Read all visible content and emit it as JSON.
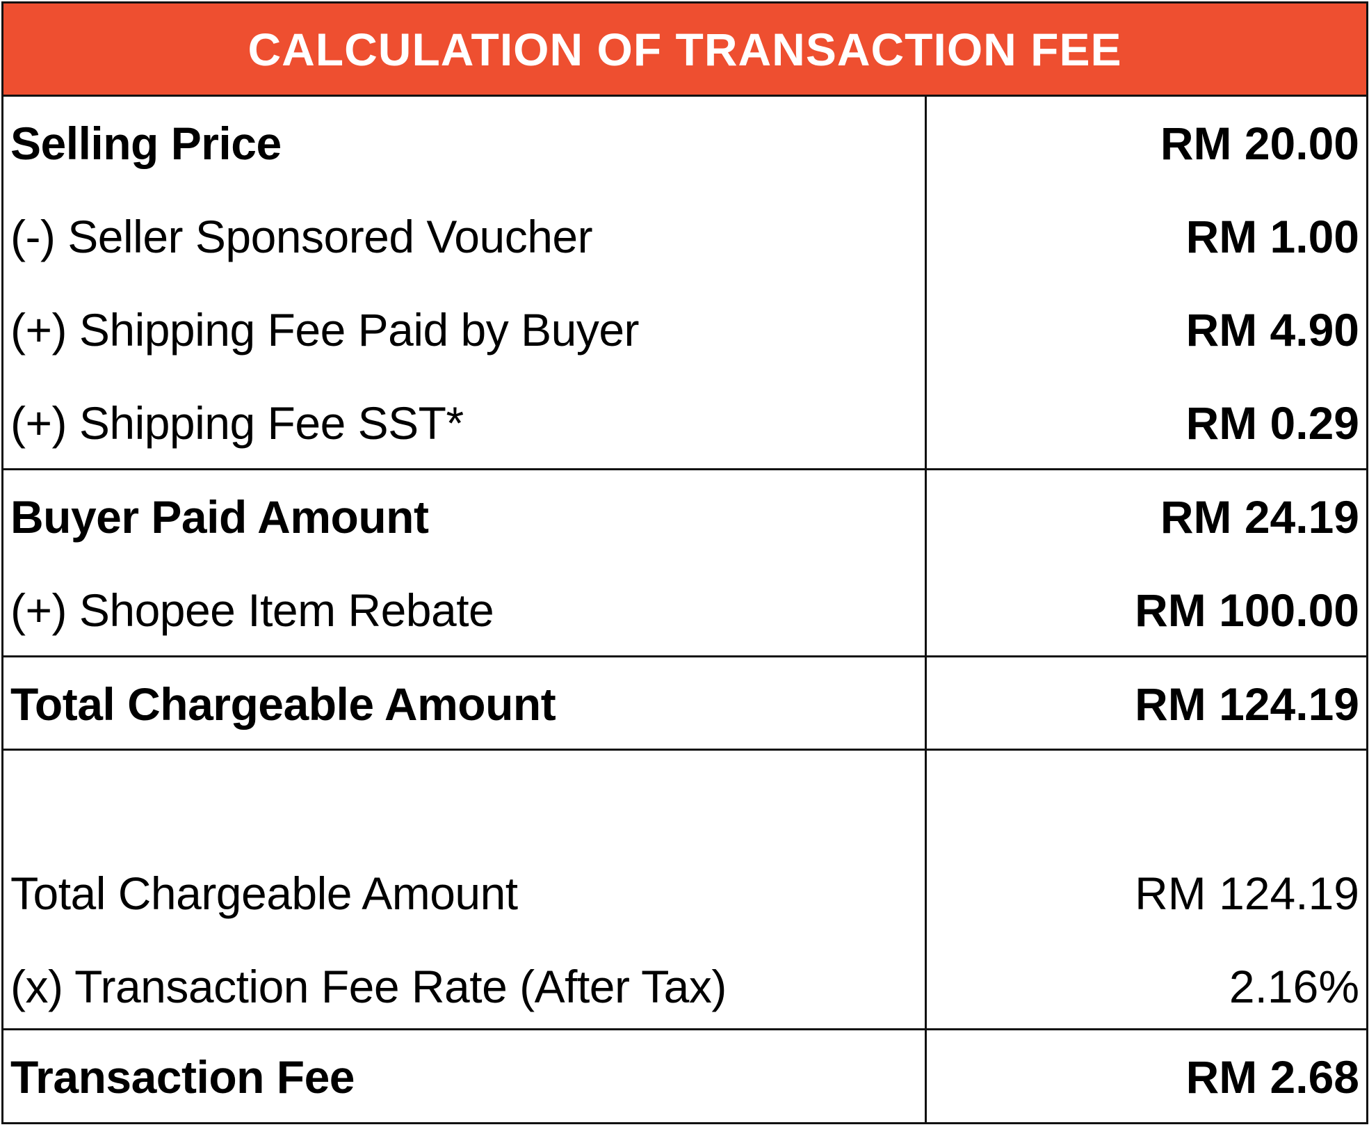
{
  "title": "CALCULATION OF TRANSACTION FEE",
  "colors": {
    "header_bg": "#EE4F30",
    "header_text": "#FFFFFF",
    "border": "#111111"
  },
  "rows": [
    {
      "label": "Selling Price",
      "value": "RM 20.00"
    },
    {
      "label": "(-) Seller Sponsored Voucher",
      "value": "RM 1.00"
    },
    {
      "label": "(+) Shipping Fee Paid by Buyer",
      "value": "RM 4.90"
    },
    {
      "label": "(+) Shipping Fee SST*",
      "value": "RM 0.29"
    },
    {
      "label": "Buyer Paid Amount",
      "value": "RM 24.19"
    },
    {
      "label": "(+) Shopee Item Rebate",
      "value": "RM 100.00"
    },
    {
      "label": "Total Chargeable Amount",
      "value": "RM 124.19"
    },
    {
      "label": "Total Chargeable Amount",
      "value": "RM 124.19"
    },
    {
      "label": "(x) Transaction Fee Rate (After Tax)",
      "value": "2.16%"
    },
    {
      "label": "Transaction Fee",
      "value": "RM 2.68"
    }
  ]
}
